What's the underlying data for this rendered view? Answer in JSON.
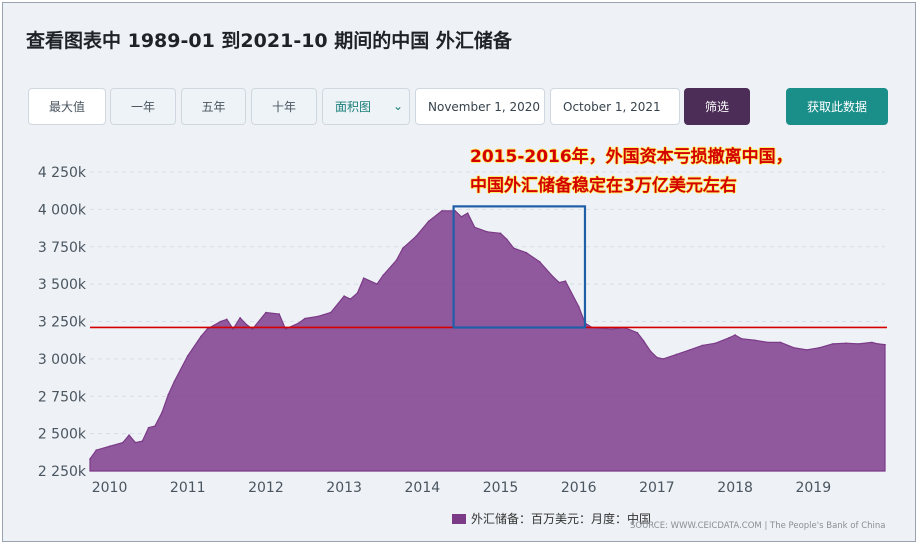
{
  "title": "查看图表中 1989-01 到2021-10 期间的中国 外汇储备",
  "controls": {
    "range_buttons": [
      "最大值",
      "一年",
      "五年",
      "十年"
    ],
    "chart_type": "面积图",
    "start_date": "November 1, 2020",
    "end_date": "October 1, 2021",
    "filter_label": "筛选",
    "fetch_label": "获取此数据"
  },
  "annotation": {
    "line1": "2015-2016年，外国资本亏损撤离中国，",
    "line2": "中国外汇储备稳定在3万亿美元左右"
  },
  "legend": {
    "label": "外汇储备：百万美元：月度：中国"
  },
  "source": "SOURCE: WWW.CEICDATA.COM | The People's Bank of China",
  "colors": {
    "area_fill": "#8a4f98",
    "area_stroke": "#7b3b87",
    "reference_line": "#d40000",
    "highlight_box": "#1f5fa8",
    "accent_teal": "#1a8f8a",
    "accent_purple": "#4b2d57"
  },
  "chart_data": {
    "type": "area",
    "title": "",
    "xlabel": "",
    "ylabel": "",
    "ylim": [
      2250000,
      4250000
    ],
    "xlim": [
      2009.75,
      2019.917
    ],
    "y_ticks": [
      "4 250k",
      "4 000k",
      "3 750k",
      "3 500k",
      "3 250k",
      "3 000k",
      "2 750k",
      "2 500k",
      "2 250k"
    ],
    "x_ticks": [
      "2010",
      "2011",
      "2012",
      "2013",
      "2014",
      "2015",
      "2016",
      "2017",
      "2018",
      "2019"
    ],
    "series": [
      {
        "name": "外汇储备：百万美元：月度：中国",
        "x": [
          2009.75,
          2009.83,
          2010.0,
          2010.17,
          2010.25,
          2010.33,
          2010.42,
          2010.5,
          2010.58,
          2010.67,
          2010.75,
          2010.83,
          2011.0,
          2011.17,
          2011.25,
          2011.42,
          2011.5,
          2011.58,
          2011.67,
          2011.75,
          2011.83,
          2012.0,
          2012.17,
          2012.25,
          2012.42,
          2012.5,
          2012.67,
          2012.83,
          2013.0,
          2013.08,
          2013.17,
          2013.25,
          2013.42,
          2013.5,
          2013.67,
          2013.75,
          2013.92,
          2014.08,
          2014.25,
          2014.42,
          2014.5,
          2014.58,
          2014.67,
          2014.83,
          2015.0,
          2015.08,
          2015.17,
          2015.33,
          2015.5,
          2015.67,
          2015.75,
          2015.83,
          2016.0,
          2016.08,
          2016.17,
          2016.42,
          2016.58,
          2016.75,
          2016.83,
          2016.92,
          2017.0,
          2017.08,
          2017.25,
          2017.42,
          2017.58,
          2017.75,
          2017.92,
          2018.0,
          2018.08,
          2018.25,
          2018.42,
          2018.58,
          2018.75,
          2018.92,
          2019.08,
          2019.25,
          2019.42,
          2019.58,
          2019.75,
          2019.83,
          2019.917
        ],
        "values": [
          2330000,
          2390000,
          2415000,
          2440000,
          2490000,
          2440000,
          2450000,
          2540000,
          2550000,
          2640000,
          2760000,
          2850000,
          3020000,
          3150000,
          3200000,
          3250000,
          3265000,
          3200000,
          3275000,
          3230000,
          3200000,
          3310000,
          3300000,
          3200000,
          3240000,
          3270000,
          3285000,
          3310000,
          3420000,
          3400000,
          3440000,
          3540000,
          3500000,
          3560000,
          3660000,
          3740000,
          3820000,
          3920000,
          3990000,
          3990000,
          3950000,
          3975000,
          3880000,
          3850000,
          3840000,
          3800000,
          3740000,
          3710000,
          3650000,
          3550000,
          3510000,
          3520000,
          3350000,
          3240000,
          3210000,
          3200000,
          3210000,
          3175000,
          3120000,
          3050000,
          3010000,
          3000000,
          3030000,
          3060000,
          3090000,
          3105000,
          3140000,
          3160000,
          3135000,
          3125000,
          3110000,
          3110000,
          3075000,
          3060000,
          3075000,
          3100000,
          3105000,
          3100000,
          3110000,
          3100000,
          3095000
        ]
      }
    ],
    "reference_line": 3210000,
    "highlight_box": {
      "x": [
        2014.4,
        2016.08
      ],
      "y": [
        3210000,
        4020000
      ]
    },
    "grid": true,
    "legend_position": "bottom"
  }
}
